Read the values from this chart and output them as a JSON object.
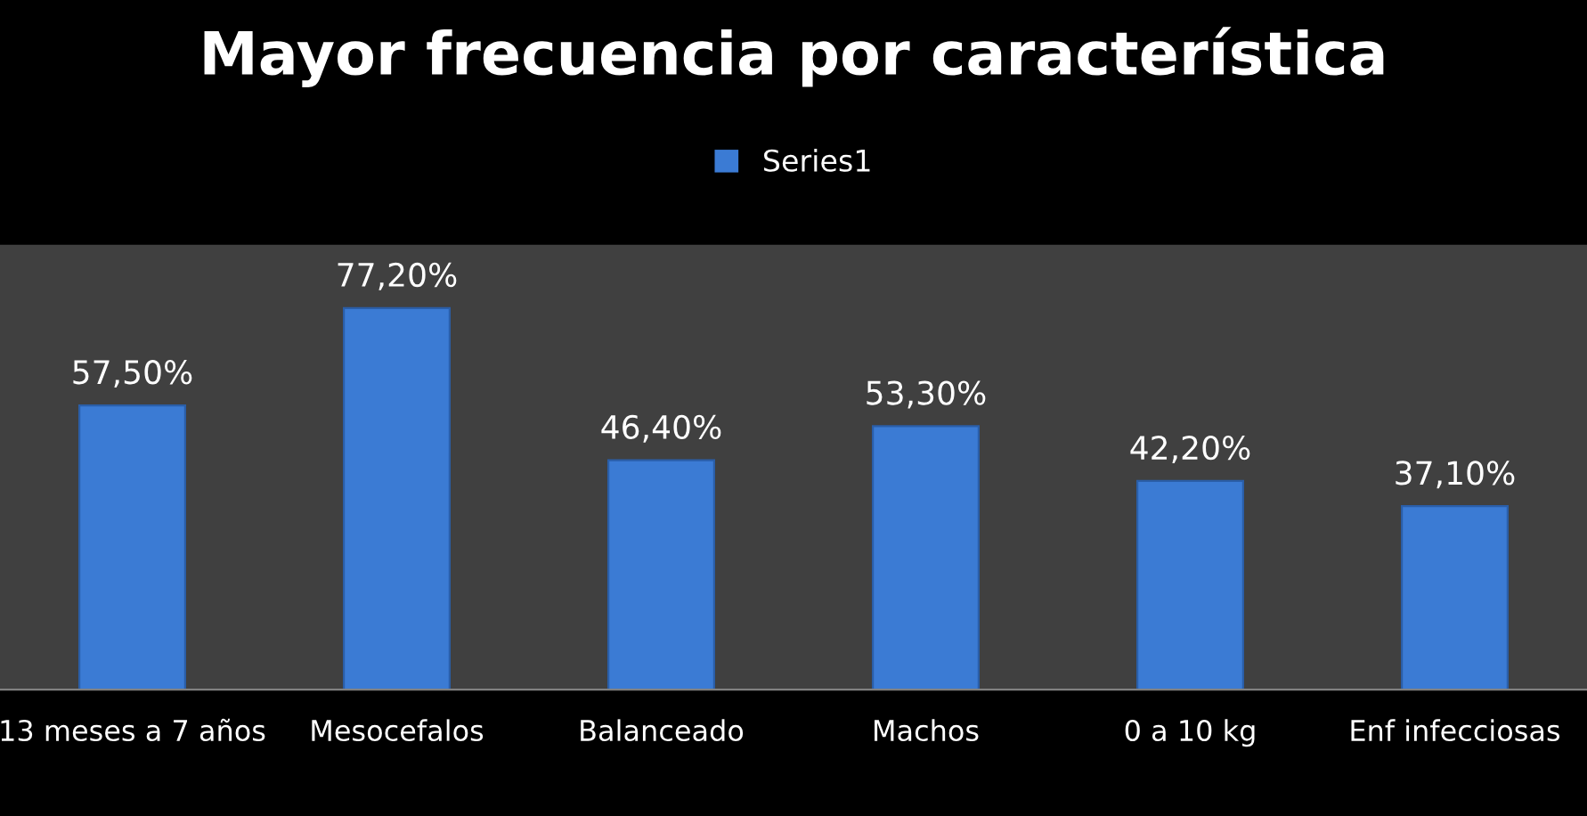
{
  "chart_data": {
    "type": "bar",
    "title": "Mayor frecuencia por característica",
    "categories": [
      "13 meses a 7 años",
      "Mesocefalos",
      "Balanceado",
      "Machos",
      "0 a 10 kg",
      "Enf infecciosas"
    ],
    "series": [
      {
        "name": "Series1",
        "color": "#3b7bd4",
        "values": [
          57.5,
          77.2,
          46.4,
          53.3,
          42.2,
          37.1
        ],
        "value_labels": [
          "57,50%",
          "77,20%",
          "46,40%",
          "53,30%",
          "42,20%",
          "37,10%"
        ]
      }
    ],
    "ylim": [
      0,
      90
    ],
    "tick_labels": "x",
    "grid": false,
    "legend": "top"
  }
}
